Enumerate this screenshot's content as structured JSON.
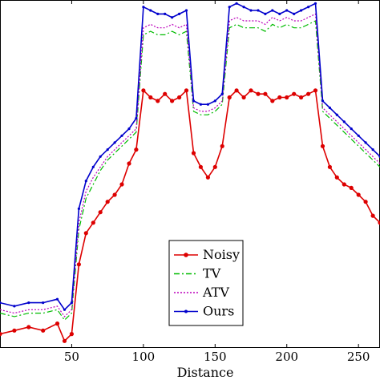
{
  "chart_data": {
    "type": "line",
    "title": "",
    "xlabel": "Distance",
    "ylabel": "",
    "xlim": [
      0,
      265
    ],
    "ylim": [
      0,
      1
    ],
    "x_ticks": [
      50,
      100,
      150,
      200,
      250
    ],
    "x_tick_labels": [
      "50",
      "100",
      "150",
      "200",
      "250"
    ],
    "grid": false,
    "legend_placement": "bottom-center",
    "x": [
      0,
      10,
      20,
      30,
      40,
      45,
      50,
      55,
      60,
      65,
      70,
      75,
      80,
      85,
      90,
      95,
      100,
      105,
      110,
      115,
      120,
      125,
      130,
      135,
      140,
      145,
      150,
      155,
      160,
      165,
      170,
      175,
      180,
      185,
      190,
      195,
      200,
      205,
      210,
      215,
      220,
      225,
      230,
      235,
      240,
      245,
      250,
      255,
      260,
      265
    ],
    "series": [
      {
        "name": "Noisy",
        "color": "#dd0000",
        "style": "solid-dots",
        "values": [
          0.04,
          0.05,
          0.06,
          0.05,
          0.07,
          0.02,
          0.04,
          0.24,
          0.33,
          0.36,
          0.39,
          0.42,
          0.44,
          0.47,
          0.53,
          0.57,
          0.74,
          0.72,
          0.71,
          0.73,
          0.71,
          0.72,
          0.74,
          0.56,
          0.52,
          0.49,
          0.52,
          0.58,
          0.72,
          0.74,
          0.72,
          0.74,
          0.73,
          0.73,
          0.71,
          0.72,
          0.72,
          0.73,
          0.72,
          0.73,
          0.74,
          0.58,
          0.52,
          0.49,
          0.47,
          0.46,
          0.44,
          0.42,
          0.38,
          0.36
        ]
      },
      {
        "name": "TV",
        "color": "#00bb00",
        "style": "dash-dot",
        "values": [
          0.1,
          0.09,
          0.1,
          0.1,
          0.11,
          0.08,
          0.1,
          0.34,
          0.43,
          0.47,
          0.51,
          0.54,
          0.56,
          0.58,
          0.6,
          0.62,
          0.9,
          0.91,
          0.9,
          0.9,
          0.91,
          0.9,
          0.91,
          0.68,
          0.67,
          0.67,
          0.68,
          0.7,
          0.92,
          0.93,
          0.92,
          0.92,
          0.92,
          0.91,
          0.93,
          0.92,
          0.93,
          0.92,
          0.92,
          0.93,
          0.94,
          0.68,
          0.66,
          0.64,
          0.62,
          0.6,
          0.58,
          0.56,
          0.54,
          0.52
        ]
      },
      {
        "name": "ATV",
        "color": "#bb00bb",
        "style": "dotted",
        "values": [
          0.11,
          0.1,
          0.11,
          0.11,
          0.12,
          0.09,
          0.11,
          0.36,
          0.45,
          0.49,
          0.52,
          0.55,
          0.57,
          0.59,
          0.61,
          0.63,
          0.92,
          0.93,
          0.92,
          0.92,
          0.93,
          0.92,
          0.93,
          0.69,
          0.68,
          0.68,
          0.69,
          0.71,
          0.94,
          0.95,
          0.94,
          0.94,
          0.94,
          0.93,
          0.95,
          0.94,
          0.95,
          0.94,
          0.94,
          0.95,
          0.96,
          0.69,
          0.67,
          0.65,
          0.63,
          0.61,
          0.59,
          0.57,
          0.55,
          0.53
        ]
      },
      {
        "name": "Ours",
        "color": "#0000cc",
        "style": "solid-markers",
        "values": [
          0.13,
          0.12,
          0.13,
          0.13,
          0.14,
          0.11,
          0.13,
          0.4,
          0.48,
          0.52,
          0.55,
          0.57,
          0.59,
          0.61,
          0.63,
          0.66,
          0.98,
          0.97,
          0.96,
          0.96,
          0.95,
          0.96,
          0.97,
          0.71,
          0.7,
          0.7,
          0.71,
          0.73,
          0.98,
          0.99,
          0.98,
          0.97,
          0.97,
          0.96,
          0.97,
          0.96,
          0.97,
          0.96,
          0.97,
          0.98,
          0.99,
          0.71,
          0.69,
          0.67,
          0.65,
          0.63,
          0.61,
          0.59,
          0.57,
          0.55
        ]
      }
    ]
  }
}
